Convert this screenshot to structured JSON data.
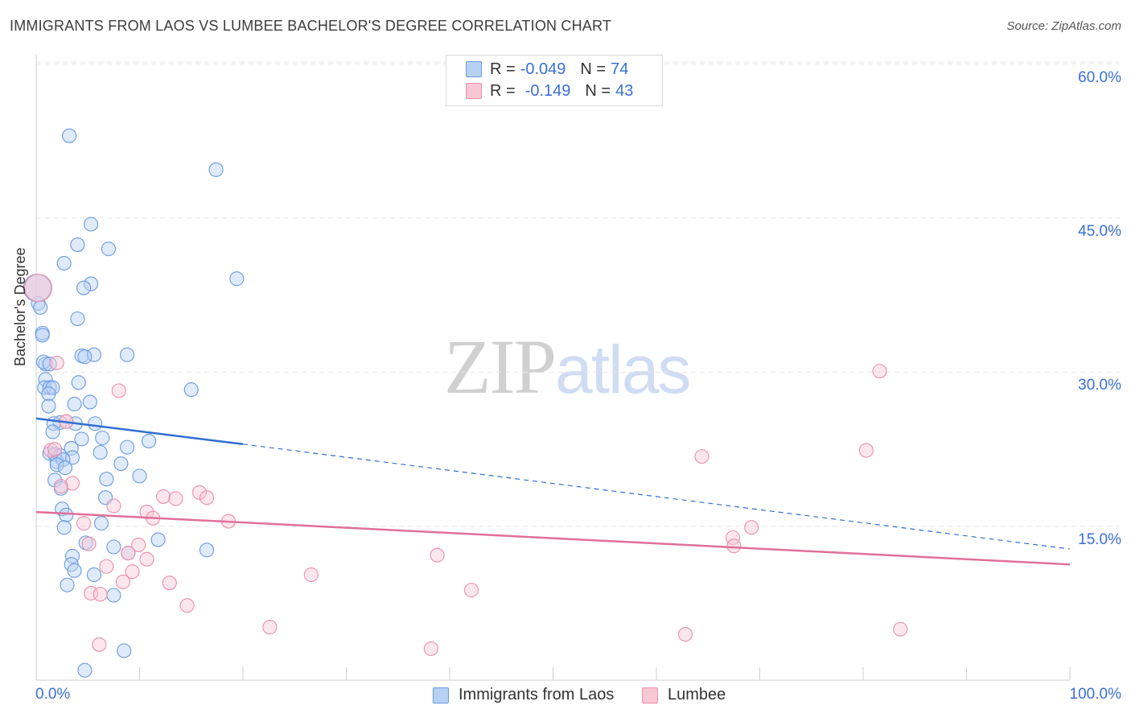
{
  "title": "IMMIGRANTS FROM LAOS VS LUMBEE BACHELOR'S DEGREE CORRELATION CHART",
  "source": "Source: ZipAtlas.com",
  "watermark": {
    "part1": "ZIP",
    "part2": "atlas"
  },
  "legend": {
    "r_label": "R =",
    "n_label": "N =",
    "series": [
      {
        "name": "Immigrants from Laos",
        "r": "-0.049",
        "n": "74"
      },
      {
        "name": "Lumbee",
        "r": "-0.149",
        "n": "43"
      }
    ]
  },
  "colors": {
    "blue_fill": "#b7d1f3",
    "blue_stroke": "#6a9be0",
    "blue_line": "#2f6fd1",
    "pink_fill": "#f8c7d6",
    "pink_stroke": "#ea8faa",
    "pink_line": "#e0709a",
    "axis_text": "#3a6fd8",
    "grid": "#e6e6e6"
  },
  "chart_data": {
    "type": "scatter",
    "title": "IMMIGRANTS FROM LAOS VS LUMBEE BACHELOR'S DEGREE CORRELATION CHART",
    "xlabel": "",
    "ylabel": "Bachelor's Degree",
    "xlim": [
      0,
      100
    ],
    "ylim": [
      0,
      60
    ],
    "x_tick_labels": [
      "0.0%",
      "100.0%"
    ],
    "y_ticks": [
      15,
      30,
      45,
      60
    ],
    "y_tick_labels": [
      "15.0%",
      "30.0%",
      "45.0%",
      "60.0%"
    ],
    "series": [
      {
        "name": "Immigrants from Laos",
        "points": [
          [
            3.2,
            53
          ],
          [
            17.4,
            49.7
          ],
          [
            5.3,
            44.4
          ],
          [
            4.0,
            42.4
          ],
          [
            7.0,
            42.0
          ],
          [
            2.7,
            40.6
          ],
          [
            19.4,
            39.1
          ],
          [
            5.3,
            38.6
          ],
          [
            4.6,
            38.2
          ],
          [
            0.2,
            36.7
          ],
          [
            0.4,
            36.3
          ],
          [
            4.0,
            35.2
          ],
          [
            0.6,
            33.8
          ],
          [
            0.6,
            33.6
          ],
          [
            4.4,
            31.6
          ],
          [
            5.6,
            31.7
          ],
          [
            8.8,
            31.7
          ],
          [
            4.7,
            31.5
          ],
          [
            0.9,
            30.8
          ],
          [
            0.7,
            31.0
          ],
          [
            1.3,
            30.8
          ],
          [
            0.9,
            29.3
          ],
          [
            4.1,
            29.0
          ],
          [
            0.8,
            28.5
          ],
          [
            1.3,
            28.5
          ],
          [
            1.6,
            28.5
          ],
          [
            15.0,
            28.3
          ],
          [
            1.2,
            27.9
          ],
          [
            3.7,
            26.9
          ],
          [
            5.2,
            27.1
          ],
          [
            1.2,
            26.7
          ],
          [
            2.3,
            25.1
          ],
          [
            3.8,
            25.0
          ],
          [
            5.7,
            25.0
          ],
          [
            1.7,
            25.0
          ],
          [
            1.6,
            24.2
          ],
          [
            4.4,
            23.5
          ],
          [
            6.4,
            23.6
          ],
          [
            10.9,
            23.3
          ],
          [
            3.4,
            22.6
          ],
          [
            8.8,
            22.7
          ],
          [
            6.2,
            22.2
          ],
          [
            1.3,
            22.1
          ],
          [
            1.8,
            22.0
          ],
          [
            2.3,
            21.9
          ],
          [
            3.5,
            21.7
          ],
          [
            2.0,
            21.3
          ],
          [
            2.6,
            21.5
          ],
          [
            2.0,
            21.0
          ],
          [
            8.2,
            21.1
          ],
          [
            2.8,
            20.7
          ],
          [
            10.0,
            19.9
          ],
          [
            1.8,
            19.5
          ],
          [
            6.8,
            19.6
          ],
          [
            2.4,
            18.7
          ],
          [
            6.7,
            17.8
          ],
          [
            2.5,
            16.7
          ],
          [
            2.9,
            16.1
          ],
          [
            6.3,
            15.3
          ],
          [
            2.7,
            14.9
          ],
          [
            11.8,
            13.7
          ],
          [
            4.8,
            13.4
          ],
          [
            7.5,
            13.0
          ],
          [
            16.5,
            12.7
          ],
          [
            8.9,
            12.4
          ],
          [
            3.5,
            12.1
          ],
          [
            3.4,
            11.3
          ],
          [
            3.7,
            10.7
          ],
          [
            5.6,
            10.3
          ],
          [
            3.0,
            9.3
          ],
          [
            7.5,
            8.3
          ],
          [
            8.5,
            2.9
          ],
          [
            4.7,
            1.0
          ],
          [
            0.1,
            38.2
          ]
        ]
      },
      {
        "name": "Lumbee",
        "points": [
          [
            81.6,
            30.1
          ],
          [
            8.0,
            28.2
          ],
          [
            2.0,
            30.9
          ],
          [
            2.9,
            25.2
          ],
          [
            1.4,
            22.4
          ],
          [
            1.8,
            22.5
          ],
          [
            64.4,
            21.8
          ],
          [
            80.3,
            22.4
          ],
          [
            3.5,
            19.2
          ],
          [
            2.4,
            18.9
          ],
          [
            15.8,
            18.3
          ],
          [
            12.3,
            17.9
          ],
          [
            13.5,
            17.7
          ],
          [
            16.5,
            17.8
          ],
          [
            7.5,
            17.0
          ],
          [
            10.7,
            16.4
          ],
          [
            11.3,
            15.8
          ],
          [
            18.6,
            15.5
          ],
          [
            4.6,
            15.3
          ],
          [
            69.2,
            14.9
          ],
          [
            5.1,
            13.3
          ],
          [
            9.9,
            13.2
          ],
          [
            67.4,
            13.9
          ],
          [
            67.5,
            13.1
          ],
          [
            8.9,
            12.4
          ],
          [
            10.7,
            11.8
          ],
          [
            38.8,
            12.2
          ],
          [
            6.8,
            11.1
          ],
          [
            9.3,
            10.6
          ],
          [
            26.6,
            10.3
          ],
          [
            8.4,
            9.6
          ],
          [
            12.9,
            9.5
          ],
          [
            5.3,
            8.5
          ],
          [
            6.2,
            8.4
          ],
          [
            42.1,
            8.8
          ],
          [
            14.6,
            7.3
          ],
          [
            22.6,
            5.2
          ],
          [
            83.6,
            5.0
          ],
          [
            62.8,
            4.5
          ],
          [
            6.1,
            3.5
          ],
          [
            38.2,
            3.1
          ],
          [
            0.2,
            38.2
          ],
          [
            2.9,
            25.2
          ]
        ]
      }
    ],
    "trend_lines": [
      {
        "name": "Immigrants from Laos",
        "x_solid": [
          0,
          20
        ],
        "y_solid": [
          25.5,
          23.0
        ],
        "x_dashed": [
          20,
          100
        ],
        "y_dashed": [
          23.0,
          12.8
        ]
      },
      {
        "name": "Lumbee",
        "x": [
          0,
          100
        ],
        "y": [
          16.4,
          11.3
        ]
      }
    ]
  }
}
